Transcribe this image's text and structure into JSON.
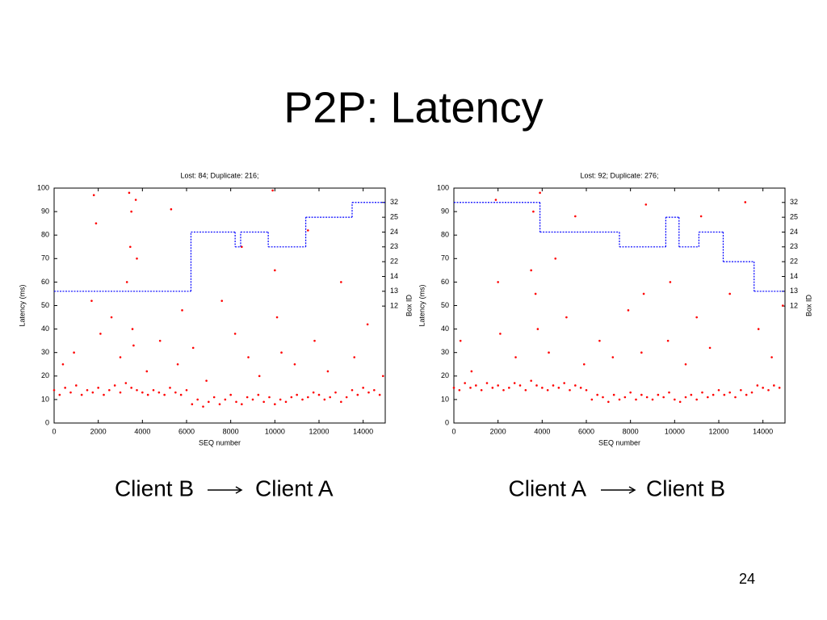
{
  "slide": {
    "title": "P2P: Latency",
    "page": 24
  },
  "captions": [
    {
      "from": "Client B",
      "to": "Client A"
    },
    {
      "from": "Client A",
      "to": "Client B"
    }
  ],
  "chart_data": [
    {
      "type": "scatter",
      "title": "Lost: 84; Duplicate: 216;",
      "x_label": "SEQ number",
      "y_label": "Latency (ms)",
      "y2_label": "Box ID",
      "xlim": [
        0,
        15000
      ],
      "xticks": [
        0,
        2000,
        4000,
        6000,
        8000,
        10000,
        12000,
        14000
      ],
      "ylim": [
        0,
        100
      ],
      "yticks": [
        0,
        10,
        20,
        30,
        40,
        50,
        60,
        70,
        80,
        90,
        100
      ],
      "y2lim": [
        -7.9,
        7.97
      ],
      "y2ticks": [
        {
          "value": 0,
          "label": "12"
        },
        {
          "value": 1,
          "label": "13"
        },
        {
          "value": 2,
          "label": "14"
        },
        {
          "value": 3,
          "label": "22"
        },
        {
          "value": 4,
          "label": "23"
        },
        {
          "value": 5,
          "label": "24"
        },
        {
          "value": 6,
          "label": "25"
        },
        {
          "value": 7,
          "label": "32"
        }
      ],
      "series": [
        {
          "type": "scatter",
          "color": "#ff0000",
          "x": [
            0,
            250,
            500,
            750,
            1000,
            1250,
            1500,
            1750,
            2000,
            2250,
            2500,
            2750,
            3000,
            3250,
            3500,
            3750,
            4000,
            4250,
            4500,
            4750,
            5000,
            5250,
            5500,
            5750,
            6000,
            6250,
            6500,
            6750,
            7000,
            7250,
            7500,
            7750,
            8000,
            8250,
            8500,
            8750,
            9000,
            9250,
            9500,
            9750,
            10000,
            10250,
            10500,
            10750,
            11000,
            11250,
            11500,
            11750,
            12000,
            12250,
            12500,
            12750,
            13000,
            13250,
            13500,
            13750,
            14000,
            14250,
            14500,
            14750,
            400,
            900,
            1800,
            1900,
            1700,
            2100,
            2600,
            3000,
            3300,
            3400,
            3500,
            3450,
            3550,
            3600,
            3700,
            3750,
            4200,
            4800,
            5300,
            5600,
            5800,
            6300,
            6900,
            7600,
            8200,
            8500,
            8800,
            9300,
            9900,
            10000,
            10100,
            10300,
            10900,
            11500,
            11800,
            12400,
            13000,
            13600,
            14200,
            14900
          ],
          "values": [
            14,
            12,
            15,
            13,
            16,
            12,
            14,
            13,
            15,
            12,
            14,
            16,
            13,
            17,
            15,
            14,
            13,
            12,
            14,
            13,
            12,
            15,
            13,
            12,
            14,
            8,
            10,
            7,
            9,
            11,
            8,
            10,
            12,
            9,
            8,
            11,
            10,
            12,
            9,
            11,
            8,
            10,
            9,
            11,
            12,
            10,
            11,
            13,
            12,
            10,
            11,
            13,
            9,
            11,
            14,
            12,
            15,
            13,
            14,
            12,
            25,
            30,
            97,
            85,
            52,
            38,
            45,
            28,
            60,
            98,
            90,
            75,
            40,
            33,
            95,
            70,
            22,
            35,
            91,
            25,
            48,
            32,
            18,
            52,
            38,
            75,
            28,
            20,
            99,
            65,
            45,
            30,
            25,
            82,
            35,
            22,
            60,
            28,
            42,
            20
          ]
        },
        {
          "type": "step",
          "color": "#0000ff",
          "axis": "y2",
          "x": [
            0,
            6200,
            8200,
            8450,
            9700,
            11400,
            13500
          ],
          "values": [
            1,
            5,
            4,
            5,
            4,
            6,
            7
          ]
        }
      ]
    },
    {
      "type": "scatter",
      "title": "Lost: 92; Duplicate: 276;",
      "x_label": "SEQ number",
      "y_label": "Latency (ms)",
      "y2_label": "Box ID",
      "xlim": [
        0,
        15000
      ],
      "xticks": [
        0,
        2000,
        4000,
        6000,
        8000,
        10000,
        12000,
        14000
      ],
      "ylim": [
        0,
        100
      ],
      "yticks": [
        0,
        10,
        20,
        30,
        40,
        50,
        60,
        70,
        80,
        90,
        100
      ],
      "y2lim": [
        -7.9,
        7.97
      ],
      "y2ticks": [
        {
          "value": 0,
          "label": "12"
        },
        {
          "value": 1,
          "label": "13"
        },
        {
          "value": 2,
          "label": "14"
        },
        {
          "value": 3,
          "label": "22"
        },
        {
          "value": 4,
          "label": "23"
        },
        {
          "value": 5,
          "label": "24"
        },
        {
          "value": 6,
          "label": "25"
        },
        {
          "value": 7,
          "label": "32"
        }
      ],
      "series": [
        {
          "type": "scatter",
          "color": "#ff0000",
          "x": [
            0,
            250,
            500,
            750,
            1000,
            1250,
            1500,
            1750,
            2000,
            2250,
            2500,
            2750,
            3000,
            3250,
            3500,
            3750,
            4000,
            4250,
            4500,
            4750,
            5000,
            5250,
            5500,
            5750,
            6000,
            6250,
            6500,
            6750,
            7000,
            7250,
            7500,
            7750,
            8000,
            8250,
            8500,
            8750,
            9000,
            9250,
            9500,
            9750,
            10000,
            10250,
            10500,
            10750,
            11000,
            11250,
            11500,
            11750,
            12000,
            12250,
            12500,
            12750,
            13000,
            13250,
            13500,
            13750,
            14000,
            14250,
            14500,
            14750,
            300,
            800,
            1900,
            2000,
            2100,
            2800,
            3500,
            3600,
            3700,
            3800,
            3900,
            4300,
            4600,
            5100,
            5500,
            5900,
            6600,
            7200,
            7900,
            8500,
            8700,
            8600,
            9700,
            9800,
            10500,
            11000,
            11200,
            11600,
            12500,
            13200,
            13800,
            14400,
            14900
          ],
          "values": [
            15,
            14,
            17,
            15,
            16,
            14,
            17,
            15,
            16,
            14,
            15,
            17,
            16,
            14,
            18,
            16,
            15,
            14,
            16,
            15,
            17,
            14,
            16,
            15,
            14,
            10,
            12,
            11,
            9,
            12,
            10,
            11,
            13,
            10,
            12,
            11,
            10,
            12,
            11,
            13,
            10,
            9,
            11,
            12,
            10,
            13,
            11,
            12,
            14,
            12,
            13,
            11,
            14,
            12,
            13,
            16,
            15,
            14,
            16,
            15,
            35,
            22,
            95,
            60,
            38,
            28,
            65,
            90,
            55,
            40,
            98,
            30,
            70,
            45,
            88,
            25,
            35,
            28,
            48,
            30,
            93,
            55,
            35,
            60,
            25,
            45,
            88,
            32,
            55,
            94,
            40,
            28,
            50
          ]
        },
        {
          "type": "step",
          "color": "#0000ff",
          "axis": "y2",
          "x": [
            0,
            3900,
            7500,
            9600,
            10200,
            11100,
            12200,
            13600
          ],
          "values": [
            7,
            5,
            4,
            6,
            4,
            5,
            3,
            1
          ]
        }
      ]
    }
  ]
}
